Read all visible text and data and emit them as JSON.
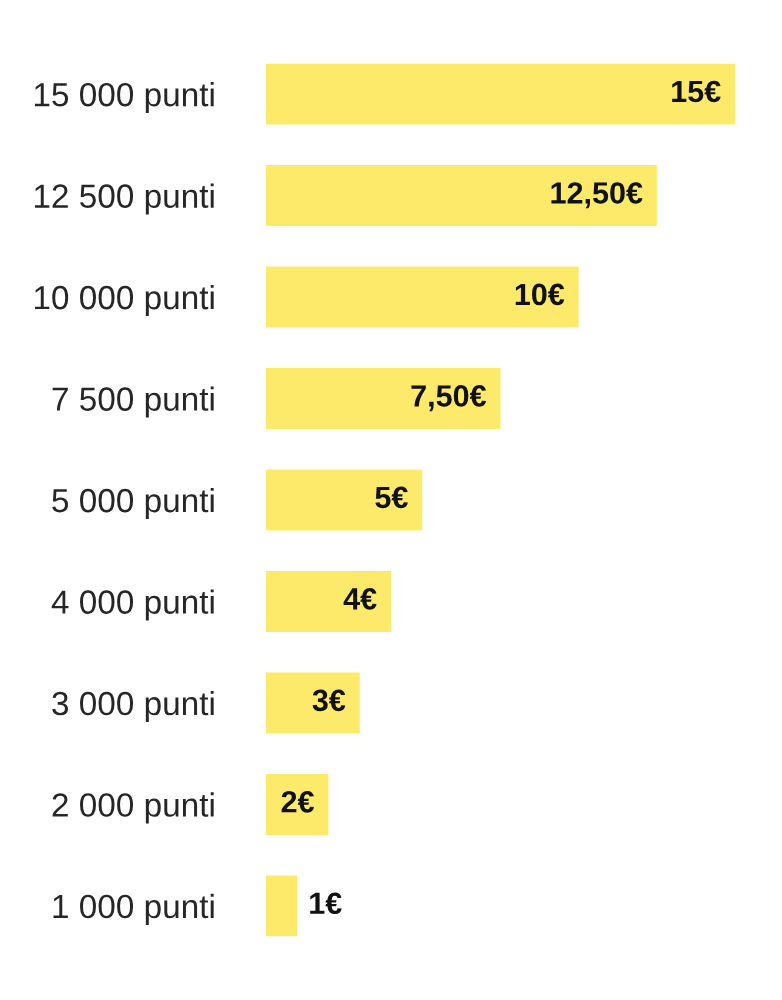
{
  "chart_data": {
    "type": "bar",
    "orientation": "horizontal",
    "categories": [
      "15 000 punti",
      "12 500 punti",
      "10 000 punti",
      "7 500 punti",
      "5 000 punti",
      "4 000 punti",
      "3 000 punti",
      "2 000 punti",
      "1 000 punti"
    ],
    "values": [
      15,
      12.5,
      10,
      7.5,
      5,
      4,
      3,
      2,
      1
    ],
    "value_labels": [
      "15€",
      "12,50€",
      "10€",
      "7,50€",
      "5€",
      "4€",
      "3€",
      "2€",
      "1€"
    ],
    "color": "#fde96a",
    "tick_labels": "y",
    "grid": false,
    "legend": false
  }
}
